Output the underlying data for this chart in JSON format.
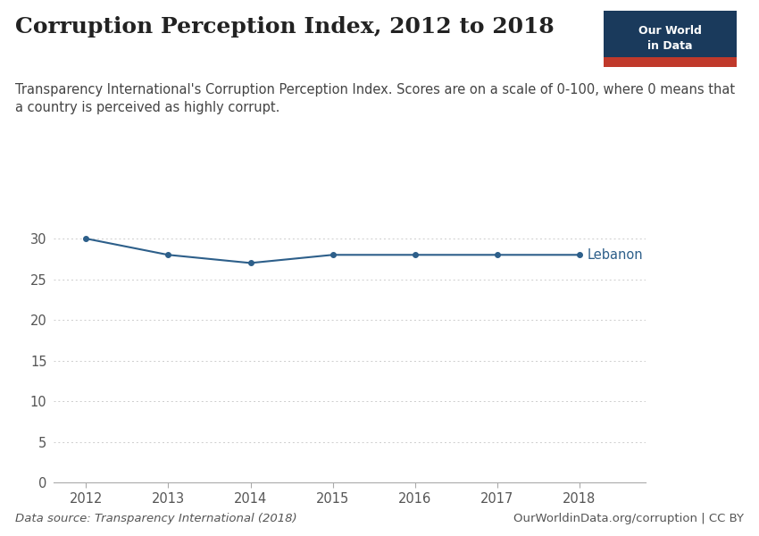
{
  "title": "Corruption Perception Index, 2012 to 2018",
  "subtitle": "Transparency International's Corruption Perception Index. Scores are on a scale of 0-100, where 0 means that\na country is perceived as highly corrupt.",
  "years": [
    2012,
    2013,
    2014,
    2015,
    2016,
    2017,
    2018
  ],
  "lebanon": [
    30,
    28,
    27,
    28,
    28,
    28,
    28
  ],
  "country_label": "Lebanon",
  "line_color": "#2d5f8a",
  "marker_color": "#2d5f8a",
  "background_color": "#FFFFFF",
  "grid_color": "#CCCCCC",
  "ylim": [
    0,
    31
  ],
  "yticks": [
    0,
    5,
    10,
    15,
    20,
    25,
    30
  ],
  "data_source": "Data source: Transparency International (2018)",
  "url": "OurWorldinData.org/corruption | CC BY",
  "owid_box_color": "#1a3a5c",
  "owid_box_red": "#c0392b",
  "owid_text_line1": "Our World",
  "owid_text_line2": "in Data",
  "title_fontsize": 18,
  "subtitle_fontsize": 10.5,
  "tick_fontsize": 10.5,
  "label_fontsize": 10.5,
  "footer_fontsize": 9.5
}
